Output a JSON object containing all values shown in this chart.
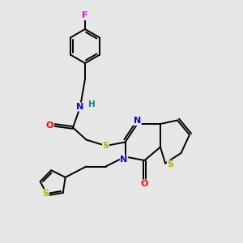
{
  "background_color": "#e6e6e6",
  "atom_colors": {
    "F": "#ee00ee",
    "N": "#0000ff",
    "O": "#ff0000",
    "S": "#bbaa00",
    "H": "#008888",
    "C": "#000000"
  },
  "lw": 1.4
}
